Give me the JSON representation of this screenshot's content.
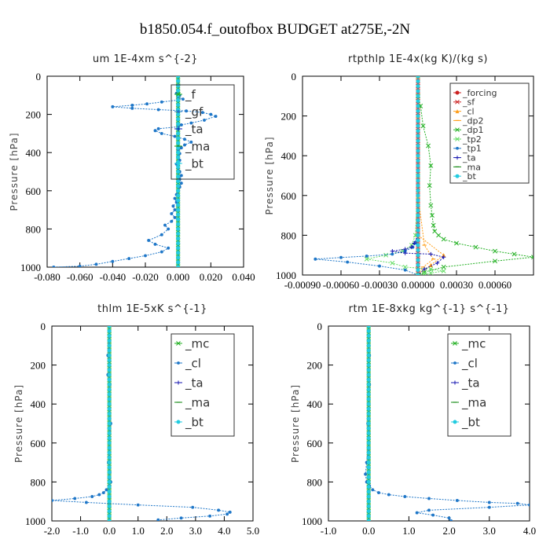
{
  "figure_title": "b1850.054.f_outofbox  BUDGET at275E,-2N",
  "colors": {
    "green": "#22b022",
    "blue": "#1f77c8",
    "darkblue": "#1515b0",
    "red": "#cc2020",
    "orange": "#ff9e1a",
    "ltgreen": "#66dd66",
    "cyan": "#22cce0",
    "dkgreen": "#118811"
  },
  "chart_data": [
    {
      "type": "line",
      "title": "um   1E-4xm s^{-2}",
      "ylabel": "Pressure [hPa]",
      "xlim": [
        -0.08,
        0.04
      ],
      "ylim": [
        1000,
        0
      ],
      "xticks": [
        "-0.080",
        "-0.060",
        "-0.040",
        "-0.020",
        "0.000",
        "0.020",
        "0.040"
      ],
      "yticks": [
        "0",
        "200",
        "400",
        "600",
        "800",
        "1000"
      ],
      "legend": {
        "position": "top-right",
        "entries": [
          "_f",
          "_gf",
          "_ta",
          "_ma",
          "_bt"
        ]
      },
      "series": [
        {
          "name": "_f",
          "color": "green",
          "marker": "x",
          "x": [
            0,
            0,
            0,
            0,
            0,
            0,
            0,
            0,
            0,
            0,
            0,
            0,
            0,
            0,
            0,
            0,
            0,
            0,
            0,
            0,
            0,
            0,
            0,
            0,
            0,
            0,
            0,
            0,
            0,
            0,
            0,
            0,
            0,
            0,
            0,
            0,
            0,
            0,
            0,
            0,
            0
          ],
          "y": [
            0,
            25,
            50,
            75,
            100,
            125,
            150,
            175,
            200,
            225,
            250,
            275,
            300,
            325,
            350,
            375,
            400,
            425,
            450,
            475,
            500,
            525,
            550,
            575,
            600,
            625,
            650,
            675,
            700,
            725,
            750,
            775,
            800,
            825,
            850,
            875,
            900,
            925,
            950,
            975,
            1000
          ]
        },
        {
          "name": "_gf",
          "color": "blue",
          "marker": "*",
          "x": [
            -0.001,
            0.001,
            0.0,
            0.003,
            0.0,
            -0.01,
            -0.019,
            -0.028,
            -0.04,
            -0.028,
            -0.012,
            0.005,
            0.015,
            0.02,
            0.023,
            0.016,
            0.008,
            0.002,
            0.0,
            -0.012,
            -0.014,
            -0.01,
            -0.002,
            0.004,
            0.008,
            0.004,
            0.002,
            0.0,
            0.001,
            0.0,
            0.001,
            -0.001,
            0.0,
            0.001,
            0.002,
            0.001,
            0.002,
            0.001,
            0.0,
            -0.001,
            -0.002,
            -0.001,
            -0.003,
            -0.002,
            -0.004,
            -0.002,
            -0.004,
            -0.008,
            -0.006,
            -0.01,
            -0.018,
            -0.014,
            -0.006,
            -0.01,
            -0.02,
            -0.03,
            -0.04,
            -0.05,
            -0.06,
            -0.076
          ],
          "y": [
            90,
            100,
            110,
            120,
            125,
            135,
            145,
            152,
            160,
            168,
            175,
            182,
            190,
            200,
            210,
            230,
            245,
            255,
            265,
            275,
            285,
            300,
            315,
            330,
            345,
            360,
            375,
            390,
            405,
            420,
            440,
            460,
            480,
            500,
            520,
            540,
            560,
            580,
            600,
            620,
            640,
            660,
            680,
            700,
            720,
            740,
            760,
            780,
            800,
            830,
            860,
            880,
            900,
            920,
            940,
            955,
            970,
            985,
            995,
            1000
          ]
        },
        {
          "name": "_ta",
          "color": "darkblue",
          "marker": "+",
          "x": [
            0,
            0,
            0,
            0,
            0,
            0
          ],
          "y": [
            0,
            200,
            400,
            600,
            800,
            1000
          ]
        },
        {
          "name": "_ma",
          "color": "dkgreen",
          "marker": "-",
          "x": [
            0,
            0,
            0,
            0,
            0,
            0
          ],
          "y": [
            0,
            200,
            400,
            600,
            800,
            1000
          ]
        },
        {
          "name": "_bt",
          "color": "cyan",
          "marker": "o",
          "x": [
            0,
            0,
            0,
            0,
            0,
            0
          ],
          "y": [
            0,
            200,
            400,
            600,
            800,
            1000
          ]
        }
      ]
    },
    {
      "type": "line",
      "title": "rtpthlp   1E-4x(kg K)/(kg s)",
      "ylabel": "Pressure [hPa]",
      "xlim": [
        -0.0009,
        0.0009
      ],
      "ylim": [
        1000,
        0
      ],
      "xticks": [
        "-0.00090",
        "-0.00060",
        "-0.00030",
        "0.00000",
        "0.00030",
        "0.00060"
      ],
      "yticks": [
        "0",
        "200",
        "400",
        "600",
        "800",
        "1000"
      ],
      "legend": {
        "position": "top-right",
        "entries": [
          "_forcing",
          "_sf",
          "_cl",
          "_dp2",
          "_dp1",
          "_tp2",
          "_tp1",
          "_ta",
          "_ma",
          "_bt"
        ]
      },
      "series": [
        {
          "name": "_forcing",
          "color": "red",
          "marker": "o",
          "x": [
            0,
            0,
            0,
            0,
            0,
            0
          ],
          "y": [
            0,
            200,
            400,
            600,
            800,
            1000
          ]
        },
        {
          "name": "_sf",
          "color": "red",
          "marker": "x",
          "x": [
            0,
            0,
            0,
            0,
            0,
            0
          ],
          "y": [
            0,
            200,
            400,
            600,
            800,
            1000
          ]
        },
        {
          "name": "_cl",
          "color": "orange",
          "marker": "^",
          "x": [
            0,
            0,
            0,
            0,
            0,
            0.0002,
            0.0001,
            0
          ],
          "y": [
            0,
            200,
            400,
            600,
            800,
            900,
            950,
            1000
          ]
        },
        {
          "name": "_dp2",
          "color": "orange",
          "marker": "-",
          "x": [
            0,
            0,
            0,
            0,
            5e-05,
            0.00012,
            4e-05,
            0
          ],
          "y": [
            0,
            200,
            400,
            600,
            850,
            920,
            960,
            1000
          ]
        },
        {
          "name": "_dp1",
          "color": "green",
          "marker": "x",
          "x": [
            0,
            2e-05,
            4e-05,
            8e-05,
            0.0001,
            9e-05,
            0.0001,
            0.00011,
            0.00012,
            0.00013,
            0.00016,
            0.0002,
            0.0003,
            0.00045,
            0.0006,
            0.00075,
            0.0009,
            0.0006,
            0.0002,
            5e-05,
            0
          ],
          "y": [
            100,
            150,
            250,
            350,
            450,
            550,
            650,
            700,
            750,
            780,
            800,
            820,
            840,
            860,
            880,
            895,
            910,
            930,
            960,
            985,
            1000
          ]
        },
        {
          "name": "_tp2",
          "color": "ltgreen",
          "marker": "x",
          "x": [
            0,
            0,
            -2e-05,
            -5e-05,
            -0.00012,
            -0.00025,
            -0.0004,
            -0.0002,
            -0.0001,
            0.0001,
            0.0002,
            0.0001,
            5e-05,
            0
          ],
          "y": [
            0,
            500,
            800,
            850,
            880,
            900,
            920,
            940,
            960,
            970,
            980,
            990,
            995,
            1000
          ]
        },
        {
          "name": "_tp1",
          "color": "blue",
          "marker": "*",
          "x": [
            0,
            0,
            -2e-05,
            -4e-05,
            -0.0001,
            -0.0002,
            -0.0004,
            -0.0006,
            -0.0008,
            -0.00055,
            -0.0003,
            -0.0001,
            0
          ],
          "y": [
            0,
            800,
            840,
            860,
            880,
            895,
            905,
            912,
            920,
            935,
            955,
            975,
            1000
          ]
        },
        {
          "name": "_ta",
          "color": "darkblue",
          "marker": "+",
          "x": [
            0,
            0,
            -3e-05,
            -5e-05,
            -0.0001,
            -0.0002,
            -0.0001,
            0.0001,
            0.0002,
            0.00015,
            5e-05,
            0
          ],
          "y": [
            0,
            800,
            840,
            860,
            870,
            880,
            890,
            895,
            910,
            940,
            970,
            1000
          ]
        },
        {
          "name": "_ma",
          "color": "dkgreen",
          "marker": "-",
          "x": [
            0,
            0,
            0,
            0,
            0,
            0
          ],
          "y": [
            0,
            200,
            400,
            600,
            800,
            1000
          ]
        },
        {
          "name": "_bt",
          "color": "cyan",
          "marker": "o",
          "x": [
            0,
            0,
            0,
            0,
            0,
            0
          ],
          "y": [
            0,
            200,
            400,
            600,
            800,
            1000
          ]
        }
      ]
    },
    {
      "type": "line",
      "title": "thlm   1E-5xK s^{-1}",
      "ylabel": "Pressure [hPa]",
      "xlim": [
        -2.0,
        5.0
      ],
      "ylim": [
        1000,
        0
      ],
      "xticks": [
        "-2.0",
        "-1.0",
        "0.0",
        "1.0",
        "2.0",
        "3.0",
        "4.0",
        "5.0"
      ],
      "yticks": [
        "0",
        "200",
        "400",
        "600",
        "800",
        "1000"
      ],
      "legend": {
        "position": "top-right",
        "entries": [
          "_mc",
          "_cl",
          "_ta",
          "_ma",
          "_bt"
        ]
      },
      "series": [
        {
          "name": "_mc",
          "color": "green",
          "marker": "x",
          "x": [
            0,
            0,
            0,
            0,
            0,
            0,
            0,
            0,
            0,
            0,
            0
          ],
          "y": [
            0,
            100,
            200,
            300,
            400,
            500,
            600,
            700,
            800,
            900,
            1000
          ]
        },
        {
          "name": "_cl",
          "color": "blue",
          "marker": "*",
          "x": [
            0,
            -0.05,
            0,
            -0.05,
            0.02,
            0.0,
            0.05,
            0.0,
            -0.03,
            0.02,
            0.0,
            0.05,
            0.0,
            -0.1,
            -0.2,
            -0.35,
            -0.6,
            -1.2,
            -2.0,
            -0.8,
            1.0,
            2.9,
            3.8,
            4.2,
            4.1,
            3.5,
            2.5,
            1.7
          ],
          "y": [
            0,
            150,
            200,
            250,
            300,
            400,
            500,
            600,
            700,
            750,
            780,
            800,
            820,
            840,
            855,
            865,
            875,
            885,
            895,
            905,
            918,
            930,
            945,
            955,
            965,
            975,
            985,
            995
          ]
        },
        {
          "name": "_ta",
          "color": "darkblue",
          "marker": "+",
          "x": [
            0,
            0,
            0,
            0,
            0,
            0
          ],
          "y": [
            0,
            200,
            400,
            600,
            800,
            1000
          ]
        },
        {
          "name": "_ma",
          "color": "dkgreen",
          "marker": "-",
          "x": [
            0,
            0,
            0,
            0,
            0,
            0
          ],
          "y": [
            0,
            200,
            400,
            600,
            800,
            1000
          ]
        },
        {
          "name": "_bt",
          "color": "cyan",
          "marker": "o",
          "x": [
            0,
            0,
            0,
            0,
            0,
            0
          ],
          "y": [
            0,
            200,
            400,
            600,
            800,
            1000
          ]
        }
      ]
    },
    {
      "type": "line",
      "title": "rtm   1E-8xkg kg^{-1} s^{-1}",
      "ylabel": "Pressure [hPa]",
      "xlim": [
        -1.0,
        4.0
      ],
      "ylim": [
        1000,
        0
      ],
      "xticks": [
        "-1.0",
        "0.0",
        "1.0",
        "2.0",
        "3.0",
        "4.0"
      ],
      "yticks": [
        "0",
        "200",
        "400",
        "600",
        "800",
        "1000"
      ],
      "legend": {
        "position": "top-right",
        "entries": [
          "_mc",
          "_cl",
          "_ta",
          "_ma",
          "_bt"
        ]
      },
      "series": [
        {
          "name": "_mc",
          "color": "green",
          "marker": "x",
          "x": [
            0,
            0,
            0,
            0,
            0,
            0,
            0,
            0,
            0,
            0,
            0
          ],
          "y": [
            0,
            100,
            200,
            300,
            400,
            500,
            600,
            700,
            800,
            900,
            1000
          ]
        },
        {
          "name": "_cl",
          "color": "blue",
          "marker": "*",
          "x": [
            0,
            0.02,
            0,
            0.02,
            0.0,
            -0.02,
            0.0,
            -0.05,
            -0.08,
            -0.05,
            0.02,
            0.1,
            0.25,
            0.5,
            0.9,
            1.5,
            2.2,
            3.0,
            3.7,
            4.0,
            3.0,
            1.5,
            1.2,
            1.6,
            2.0,
            2.05
          ],
          "y": [
            0,
            150,
            200,
            300,
            400,
            500,
            600,
            700,
            760,
            800,
            820,
            840,
            855,
            865,
            875,
            885,
            895,
            905,
            910,
            918,
            930,
            945,
            958,
            970,
            985,
            1000
          ]
        },
        {
          "name": "_ta",
          "color": "darkblue",
          "marker": "+",
          "x": [
            0,
            0,
            0,
            0,
            0,
            0
          ],
          "y": [
            0,
            200,
            400,
            600,
            800,
            1000
          ]
        },
        {
          "name": "_ma",
          "color": "dkgreen",
          "marker": "-",
          "x": [
            0,
            0,
            0,
            0,
            0,
            0
          ],
          "y": [
            0,
            200,
            400,
            600,
            800,
            1000
          ]
        },
        {
          "name": "_bt",
          "color": "cyan",
          "marker": "o",
          "x": [
            0,
            0,
            0,
            0,
            0,
            0
          ],
          "y": [
            0,
            200,
            400,
            600,
            800,
            1000
          ]
        }
      ]
    }
  ]
}
